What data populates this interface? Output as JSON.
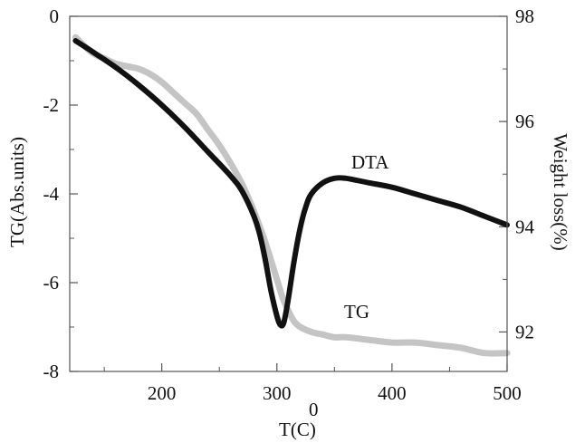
{
  "chart_data": {
    "type": "line",
    "title": "",
    "xlabel": "T(C)",
    "xlabel_superscript": "0",
    "ylabel_left": "TG(Abs.units)",
    "ylabel_right": "Weight loss(%)",
    "xlim": [
      120,
      500
    ],
    "ylim_left": [
      -8,
      0
    ],
    "ylim_right": [
      91.25,
      98
    ],
    "x_ticks": [
      200,
      300,
      400,
      500
    ],
    "y_ticks_left": [
      0,
      -2,
      -4,
      -6,
      -8
    ],
    "y_ticks_right": [
      98,
      96,
      94,
      92
    ],
    "colors": {
      "dta": "#111111",
      "tg": "#c4c4c4"
    },
    "series": [
      {
        "name": "DTA",
        "axis": "left",
        "x": [
          125,
          140,
          160,
          180,
          200,
          220,
          240,
          260,
          270,
          280,
          285,
          290,
          295,
          300,
          303,
          306,
          310,
          315,
          320,
          325,
          330,
          340,
          350,
          360,
          380,
          400,
          420,
          440,
          460,
          480,
          500
        ],
        "y": [
          -0.55,
          -0.8,
          -1.15,
          -1.55,
          -2.0,
          -2.5,
          -3.05,
          -3.6,
          -3.95,
          -4.5,
          -4.9,
          -5.5,
          -6.2,
          -6.75,
          -6.95,
          -6.9,
          -6.35,
          -5.5,
          -4.8,
          -4.3,
          -4.0,
          -3.75,
          -3.65,
          -3.65,
          -3.75,
          -3.85,
          -4.0,
          -4.15,
          -4.3,
          -4.5,
          -4.7
        ]
      },
      {
        "name": "TG",
        "axis": "right",
        "x": [
          125,
          140,
          150,
          160,
          170,
          180,
          190,
          200,
          210,
          220,
          230,
          240,
          250,
          260,
          270,
          280,
          290,
          300,
          305,
          310,
          315,
          320,
          330,
          340,
          350,
          360,
          380,
          400,
          420,
          440,
          460,
          480,
          500
        ],
        "y": [
          97.6,
          97.3,
          97.2,
          97.1,
          97.05,
          97.0,
          96.9,
          96.75,
          96.55,
          96.35,
          96.15,
          95.85,
          95.55,
          95.2,
          94.8,
          94.3,
          93.7,
          93.0,
          92.65,
          92.4,
          92.2,
          92.1,
          92.0,
          91.95,
          91.9,
          91.9,
          91.85,
          91.8,
          91.8,
          91.75,
          91.7,
          91.6,
          91.6
        ]
      }
    ],
    "series_labels": [
      {
        "text": "DTA",
        "series": "DTA"
      },
      {
        "text": "TG",
        "series": "TG"
      }
    ]
  }
}
